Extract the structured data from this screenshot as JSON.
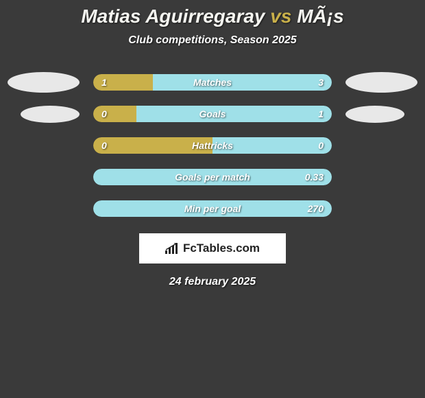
{
  "title": {
    "player1": "Matias Aguirregaray",
    "vs": "vs",
    "player2": "MÃ¡s"
  },
  "subtitle": "Club competitions, Season 2025",
  "colors": {
    "player1": "#c9b04a",
    "player2": "#9fe0e8",
    "badge": "#e8e8e8",
    "background": "#3a3a3a",
    "text": "#ffffff"
  },
  "rows": [
    {
      "label": "Matches",
      "left_value": "1",
      "right_value": "3",
      "left_pct": 25,
      "show_badges": true
    },
    {
      "label": "Goals",
      "left_value": "0",
      "right_value": "1",
      "left_pct": 18,
      "show_badges": true
    },
    {
      "label": "Hattricks",
      "left_value": "0",
      "right_value": "0",
      "left_pct": 50,
      "show_badges": false
    },
    {
      "label": "Goals per match",
      "left_value": "",
      "right_value": "0.33",
      "left_pct": 0,
      "show_badges": false
    },
    {
      "label": "Min per goal",
      "left_value": "",
      "right_value": "270",
      "left_pct": 0,
      "show_badges": false
    }
  ],
  "logo": {
    "text": "FcTables.com"
  },
  "date": "24 february 2025"
}
